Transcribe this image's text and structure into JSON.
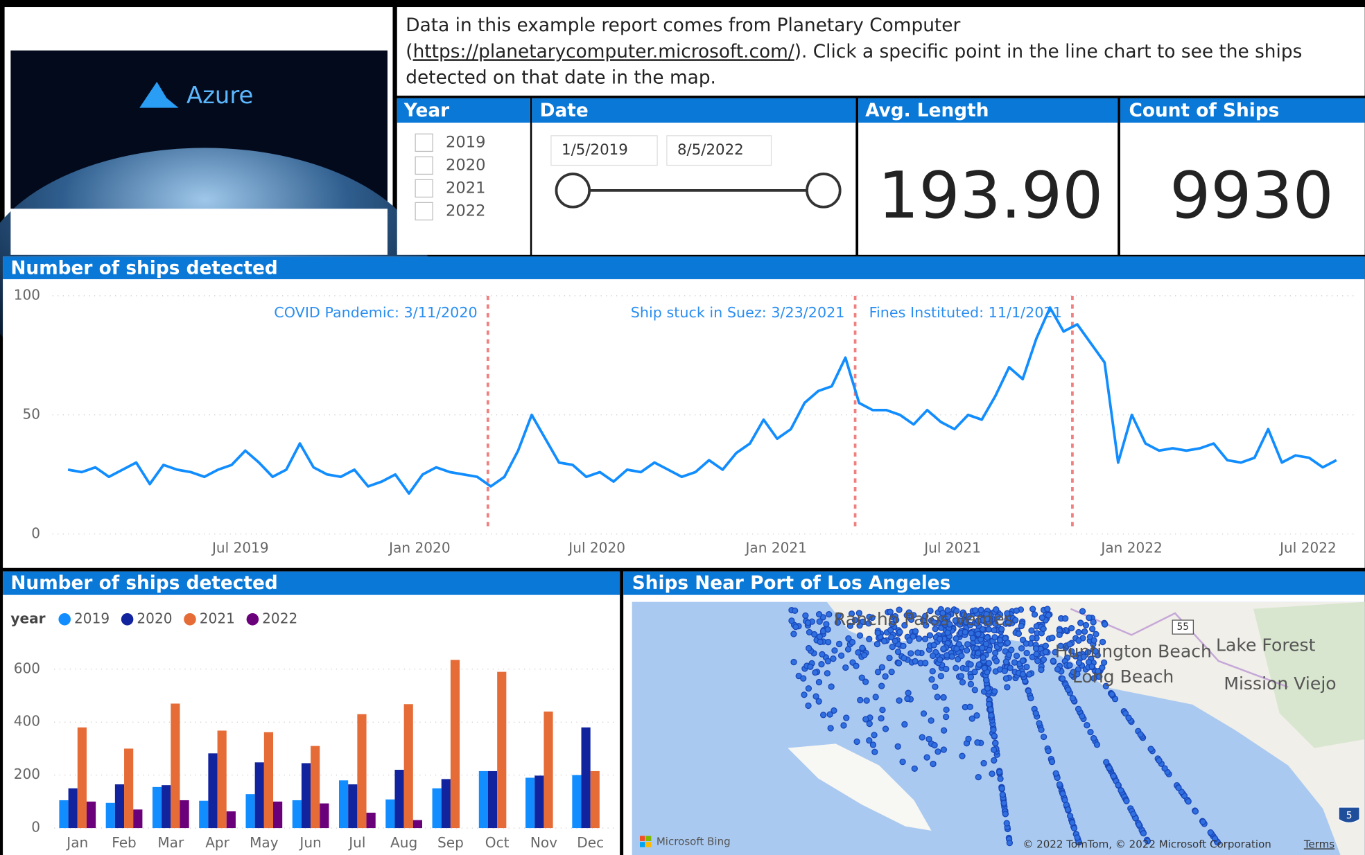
{
  "logo": {
    "text": "Azure"
  },
  "description": {
    "before": "Data in this example report comes from Planetary Computer (",
    "link": "https://planetarycomputer.microsoft.com/",
    "after": ").  Click a specific point in the line chart to see the ships detected on that date in the map."
  },
  "slicers": {
    "year": {
      "title": "Year",
      "options": [
        "2019",
        "2020",
        "2021",
        "2022"
      ]
    },
    "date": {
      "title": "Date",
      "start": "1/5/2019",
      "end": "8/5/2022"
    }
  },
  "cards": [
    {
      "title": "Avg. Length",
      "value": "193.90"
    },
    {
      "title": "Count of Ships",
      "value": "9930"
    }
  ],
  "chart_data": [
    {
      "type": "line",
      "title": "Number of ships detected",
      "color": "#118dff",
      "grid": true,
      "x": [
        "2019-01-05",
        "2019-01-19",
        "2019-02-02",
        "2019-02-16",
        "2019-03-02",
        "2019-03-16",
        "2019-03-30",
        "2019-04-13",
        "2019-04-27",
        "2019-05-11",
        "2019-05-25",
        "2019-06-08",
        "2019-06-22",
        "2019-07-06",
        "2019-07-20",
        "2019-08-03",
        "2019-08-17",
        "2019-08-31",
        "2019-09-14",
        "2019-09-28",
        "2019-10-12",
        "2019-10-26",
        "2019-11-09",
        "2019-11-23",
        "2019-12-07",
        "2019-12-21",
        "2020-01-04",
        "2020-01-18",
        "2020-02-01",
        "2020-02-15",
        "2020-02-29",
        "2020-03-14",
        "2020-03-28",
        "2020-04-11",
        "2020-04-25",
        "2020-05-09",
        "2020-05-23",
        "2020-06-06",
        "2020-06-20",
        "2020-07-04",
        "2020-07-18",
        "2020-08-01",
        "2020-08-15",
        "2020-08-29",
        "2020-09-12",
        "2020-09-26",
        "2020-10-10",
        "2020-10-24",
        "2020-11-07",
        "2020-11-21",
        "2020-12-05",
        "2020-12-19",
        "2021-01-02",
        "2021-01-16",
        "2021-01-30",
        "2021-02-13",
        "2021-02-27",
        "2021-03-13",
        "2021-03-27",
        "2021-04-10",
        "2021-04-24",
        "2021-05-08",
        "2021-05-22",
        "2021-06-05",
        "2021-06-19",
        "2021-07-03",
        "2021-07-17",
        "2021-07-31",
        "2021-08-14",
        "2021-08-28",
        "2021-09-11",
        "2021-09-25",
        "2021-10-09",
        "2021-10-23",
        "2021-11-06",
        "2021-11-20",
        "2021-12-04",
        "2021-12-18",
        "2022-01-01",
        "2022-01-15",
        "2022-01-29",
        "2022-02-12",
        "2022-02-26",
        "2022-03-12",
        "2022-03-26",
        "2022-04-09",
        "2022-04-23",
        "2022-05-07",
        "2022-05-21",
        "2022-06-04",
        "2022-06-18",
        "2022-07-02",
        "2022-07-16",
        "2022-07-30"
      ],
      "values": [
        27,
        26,
        28,
        24,
        27,
        30,
        21,
        29,
        27,
        26,
        24,
        27,
        29,
        35,
        30,
        24,
        27,
        38,
        28,
        25,
        24,
        27,
        20,
        22,
        25,
        17,
        25,
        28,
        26,
        25,
        24,
        20,
        24,
        35,
        50,
        40,
        30,
        29,
        24,
        26,
        22,
        27,
        26,
        30,
        27,
        24,
        26,
        31,
        27,
        34,
        38,
        48,
        40,
        44,
        55,
        60,
        62,
        74,
        55,
        52,
        52,
        50,
        46,
        52,
        47,
        44,
        50,
        48,
        58,
        70,
        65,
        82,
        95,
        85,
        88,
        80,
        72,
        30,
        50,
        38,
        35,
        36,
        35,
        36,
        38,
        31,
        30,
        32,
        44,
        30,
        33,
        32,
        28,
        31
      ],
      "xlim": [
        "2018-12-20",
        "2022-08-21"
      ],
      "xticks": [
        {
          "value": "2019-07-01",
          "label": "Jul 2019"
        },
        {
          "value": "2020-01-01",
          "label": "Jan 2020"
        },
        {
          "value": "2020-07-01",
          "label": "Jul 2020"
        },
        {
          "value": "2021-01-01",
          "label": "Jan 2021"
        },
        {
          "value": "2021-07-01",
          "label": "Jul 2021"
        },
        {
          "value": "2022-01-01",
          "label": "Jan 2022"
        },
        {
          "value": "2022-07-01",
          "label": "Jul 2022"
        }
      ],
      "ylim": [
        0,
        100
      ],
      "yticks": [
        0,
        50,
        100
      ],
      "annotations": [
        {
          "x": "2020-03-11",
          "label": "COVID Pandemic: 3/11/2020"
        },
        {
          "x": "2021-03-23",
          "label": "Ship stuck in Suez: 3/23/2021"
        },
        {
          "x": "2021-11-01",
          "label": "Fines Instituted: 11/1/2021"
        }
      ]
    },
    {
      "type": "bar",
      "title": "Number of ships detected",
      "legend_title": "year",
      "grid": true,
      "categories": [
        "Jan",
        "Feb",
        "Mar",
        "Apr",
        "May",
        "Jun",
        "Jul",
        "Aug",
        "Sep",
        "Oct",
        "Nov",
        "Dec"
      ],
      "series": [
        {
          "name": "2019",
          "color": "#118dff",
          "values": [
            105,
            95,
            155,
            103,
            128,
            105,
            180,
            108,
            150,
            215,
            190,
            200
          ]
        },
        {
          "name": "2020",
          "color": "#12239e",
          "values": [
            150,
            165,
            162,
            282,
            248,
            245,
            165,
            220,
            185,
            215,
            198,
            380
          ]
        },
        {
          "name": "2021",
          "color": "#e66c37",
          "values": [
            380,
            300,
            470,
            368,
            362,
            310,
            430,
            468,
            635,
            590,
            440,
            215
          ]
        },
        {
          "name": "2022",
          "color": "#6b007b",
          "values": [
            100,
            70,
            105,
            63,
            100,
            93,
            58,
            30,
            null,
            null,
            null,
            null
          ]
        }
      ],
      "ylim": [
        0,
        680
      ],
      "yticks": [
        0,
        200,
        400,
        600
      ]
    }
  ],
  "map": {
    "title": "Ships Near Port of Los Angeles",
    "places": [
      "Rancho Palos Verdes",
      "Huntington Beach",
      "Long Beach",
      "Lake Forest",
      "Mission Viejo"
    ],
    "shields": [
      "55",
      "5"
    ],
    "provider": "Microsoft Bing",
    "copyright": "© 2022 TomTom, © 2022 Microsoft Corporation",
    "terms": "Terms"
  }
}
